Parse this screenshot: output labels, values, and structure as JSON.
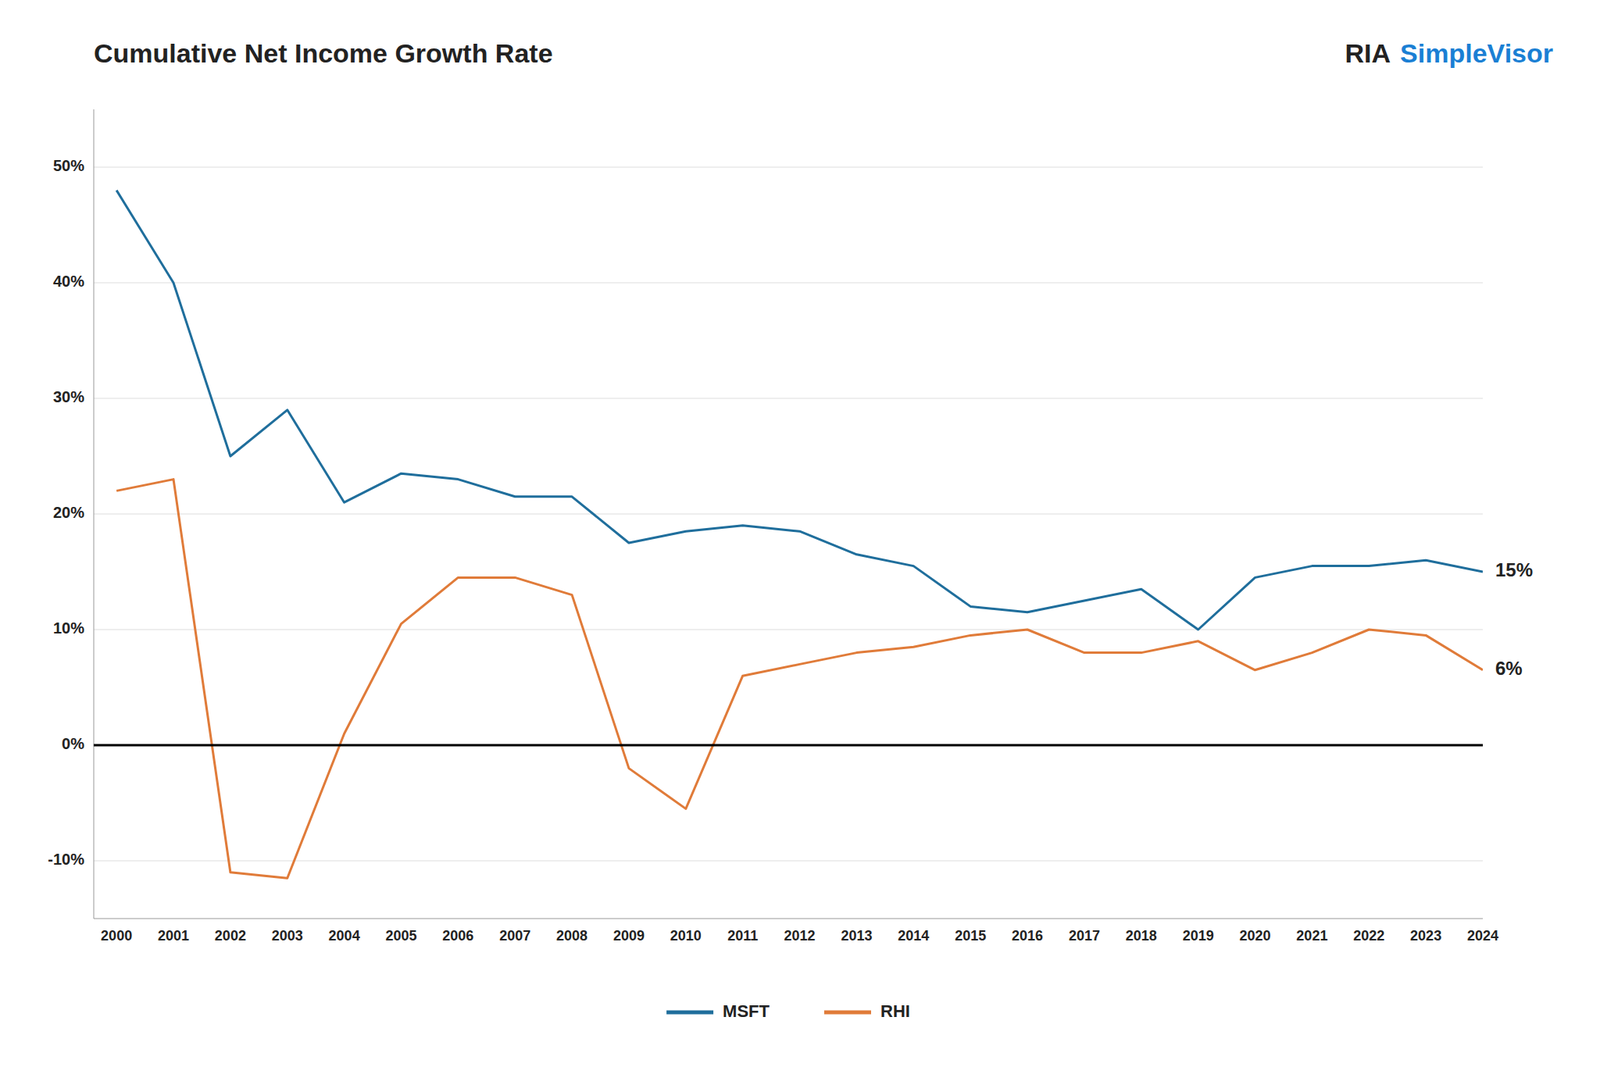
{
  "chart_data": {
    "type": "line",
    "title": "Cumulative Net Income Growth Rate",
    "x": [
      2000,
      2001,
      2002,
      2003,
      2004,
      2005,
      2006,
      2007,
      2008,
      2009,
      2010,
      2011,
      2012,
      2013,
      2014,
      2015,
      2016,
      2017,
      2018,
      2019,
      2020,
      2021,
      2022,
      2023,
      2024
    ],
    "series": [
      {
        "name": "MSFT",
        "color": "#1f6e9c",
        "values": [
          0.48,
          0.4,
          0.25,
          0.29,
          0.21,
          0.235,
          0.23,
          0.215,
          0.215,
          0.175,
          0.185,
          0.19,
          0.185,
          0.165,
          0.155,
          0.12,
          0.115,
          0.125,
          0.135,
          0.1,
          0.145,
          0.155,
          0.155,
          0.16,
          0.15
        ]
      },
      {
        "name": "RHI",
        "color": "#e07b39",
        "values": [
          0.22,
          0.23,
          -0.11,
          -0.115,
          0.01,
          0.105,
          0.145,
          0.145,
          0.13,
          -0.02,
          -0.055,
          0.06,
          0.07,
          0.08,
          0.085,
          0.095,
          0.1,
          0.08,
          0.08,
          0.09,
          0.065,
          0.08,
          0.1,
          0.095,
          0.065
        ]
      }
    ],
    "xlim": [
      1999.6,
      2024.0
    ],
    "xticks": [
      2000,
      2001,
      2002,
      2003,
      2004,
      2005,
      2006,
      2007,
      2008,
      2009,
      2010,
      2011,
      2012,
      2013,
      2014,
      2015,
      2016,
      2017,
      2018,
      2019,
      2020,
      2021,
      2022,
      2023,
      2024
    ],
    "ylim": [
      -0.15,
      0.55
    ],
    "yticks": [
      {
        "value": -0.1,
        "label": "-10%"
      },
      {
        "value": 0.0,
        "label": "0%"
      },
      {
        "value": 0.1,
        "label": "10%"
      },
      {
        "value": 0.2,
        "label": "20%"
      },
      {
        "value": 0.3,
        "label": "30%"
      },
      {
        "value": 0.4,
        "label": "40%"
      },
      {
        "value": 0.5,
        "label": "50%"
      }
    ],
    "grid": true,
    "legend": "bottom",
    "annotations": [
      {
        "text": "15%",
        "x": 2024,
        "y": 0.15
      },
      {
        "text": "6%",
        "x": 2024,
        "y": 0.065
      },
      {
        "text": "RIA"
      },
      {
        "text": "SimpleVisor",
        "color": "#1a7fd4"
      }
    ]
  }
}
